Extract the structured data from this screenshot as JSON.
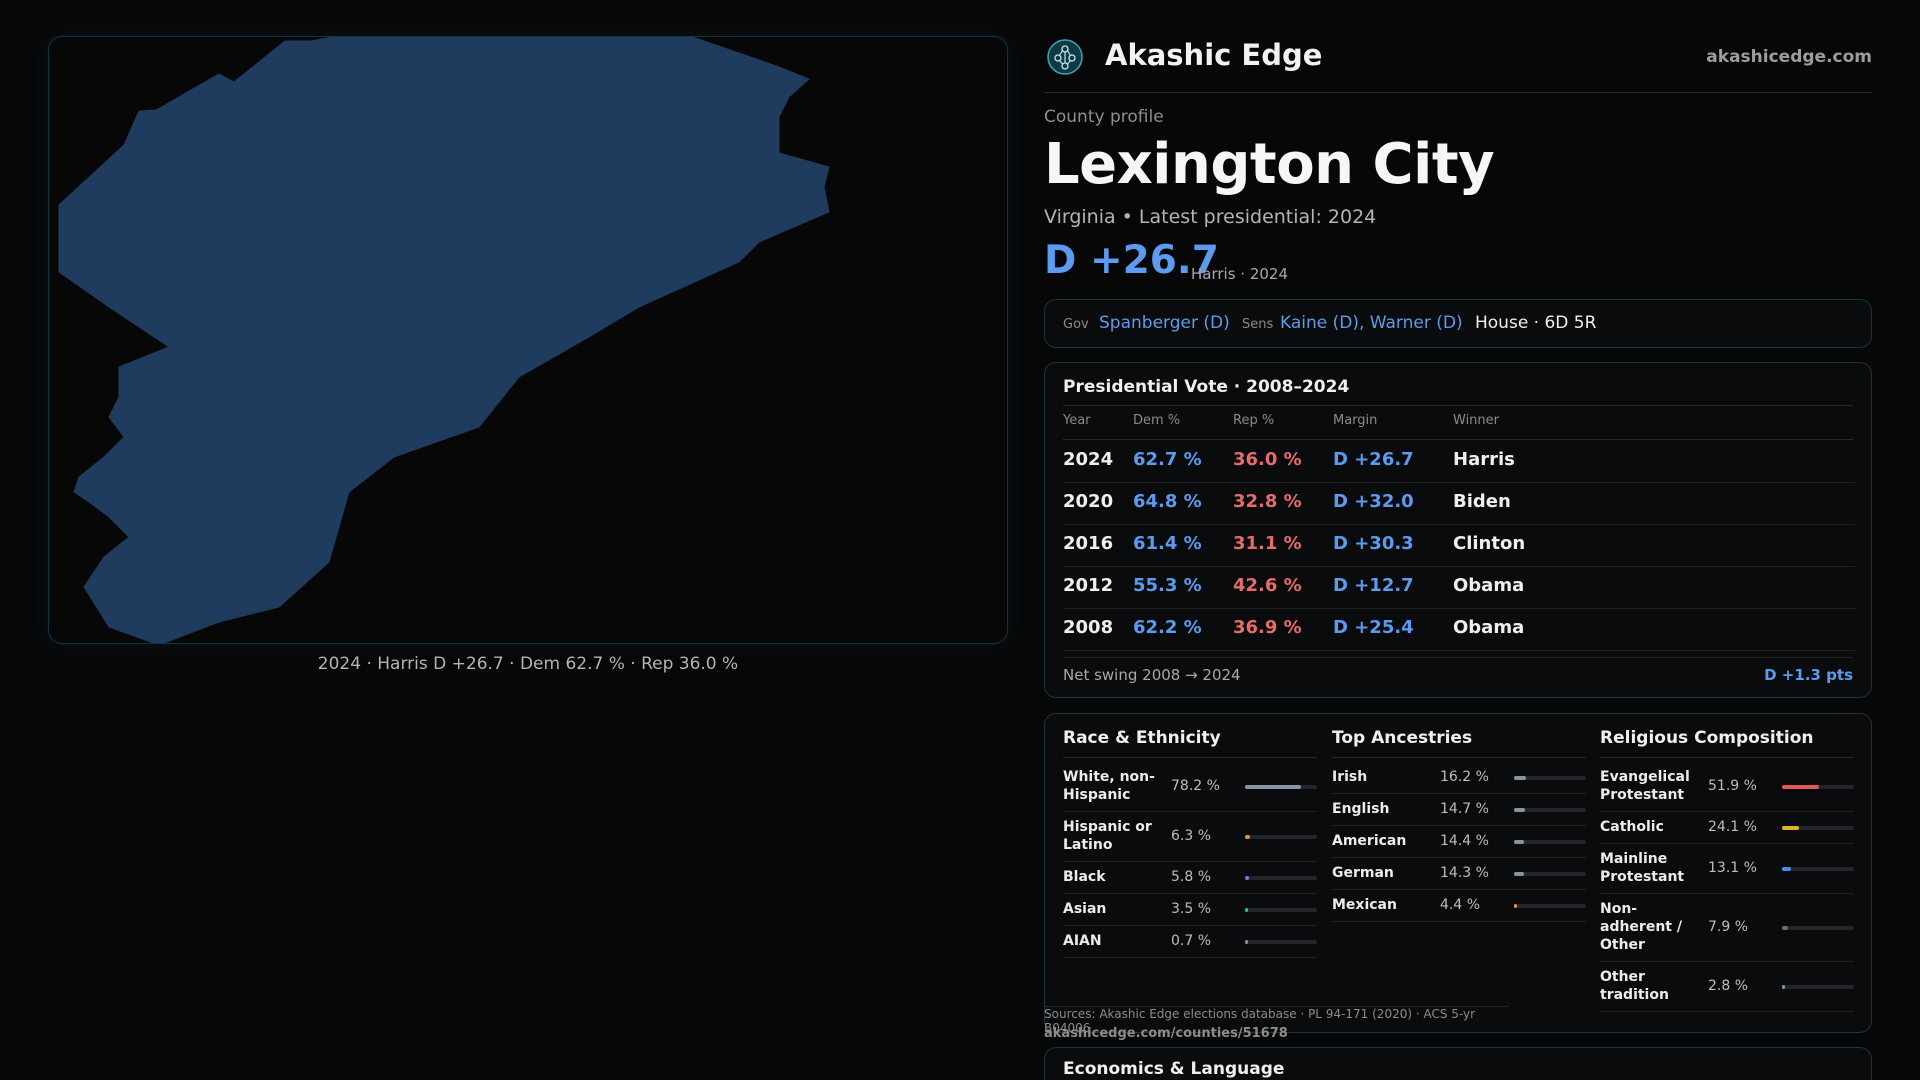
{
  "map": {
    "caption": "2024 · Harris D +26.7 · Dem 62.7 % · Rep 36.0 %",
    "fill_color": "#1f3b5e"
  },
  "header": {
    "brand": "Akashic Edge",
    "site": "akashicedge.com",
    "logo_icon": "tree-of-life-icon"
  },
  "profile": {
    "kicker": "County profile",
    "county": "Lexington City",
    "subline": "Virginia • Latest presidential: 2024",
    "margin": "D +26.7",
    "margin_note": "Harris · 2024"
  },
  "officials": {
    "gov_label": "Gov",
    "gov": "Spanberger (D)",
    "sens_label": "Sens",
    "sens": "Kaine (D), Warner (D)",
    "house": "House · 6D 5R"
  },
  "presidential": {
    "title": "Presidential Vote · 2008–2024",
    "columns": [
      "Year",
      "Dem %",
      "Rep %",
      "Margin",
      "Winner"
    ],
    "rows": [
      {
        "year": "2024",
        "dem": "62.7 %",
        "rep": "36.0 %",
        "margin": "D +26.7",
        "winner": "Harris"
      },
      {
        "year": "2020",
        "dem": "64.8 %",
        "rep": "32.8 %",
        "margin": "D +32.0",
        "winner": "Biden"
      },
      {
        "year": "2016",
        "dem": "61.4 %",
        "rep": "31.1 %",
        "margin": "D +30.3",
        "winner": "Clinton"
      },
      {
        "year": "2012",
        "dem": "55.3 %",
        "rep": "42.6 %",
        "margin": "D +12.7",
        "winner": "Obama"
      },
      {
        "year": "2008",
        "dem": "62.2 %",
        "rep": "36.9 %",
        "margin": "D +25.4",
        "winner": "Obama"
      }
    ],
    "swing_label": "Net swing 2008 → 2024",
    "swing_value": "D +1.3 pts"
  },
  "race": {
    "title": "Race & Ethnicity",
    "rows": [
      {
        "label": "White, non-Hispanic",
        "value": "78.2 %",
        "pct": 78.2,
        "color": "#8a93a6"
      },
      {
        "label": "Hispanic or Latino",
        "value": "6.3 %",
        "pct": 6.3,
        "color": "#e0902f"
      },
      {
        "label": "Black",
        "value": "5.8 %",
        "pct": 5.8,
        "color": "#8b6fe0"
      },
      {
        "label": "Asian",
        "value": "3.5 %",
        "pct": 3.5,
        "color": "#2fbf8a"
      },
      {
        "label": "AIAN",
        "value": "0.7 %",
        "pct": 0.7,
        "color": "#8a93a6"
      }
    ]
  },
  "ancestry": {
    "title": "Top Ancestries",
    "rows": [
      {
        "label": "Irish",
        "value": "16.2 %",
        "pct": 16.2,
        "color": "#8a93a6"
      },
      {
        "label": "English",
        "value": "14.7 %",
        "pct": 14.7,
        "color": "#8a93a6"
      },
      {
        "label": "American",
        "value": "14.4 %",
        "pct": 14.4,
        "color": "#8a93a6"
      },
      {
        "label": "German",
        "value": "14.3 %",
        "pct": 14.3,
        "color": "#8a93a6"
      },
      {
        "label": "Mexican",
        "value": "4.4 %",
        "pct": 4.4,
        "color": "#e0902f"
      }
    ]
  },
  "religion": {
    "title": "Religious Composition",
    "rows": [
      {
        "label": "Evangelical Protestant",
        "value": "51.9 %",
        "pct": 51.9,
        "color": "#e05a5a"
      },
      {
        "label": "Catholic",
        "value": "24.1 %",
        "pct": 24.1,
        "color": "#e0b12f"
      },
      {
        "label": "Mainline Protestant",
        "value": "13.1 %",
        "pct": 13.1,
        "color": "#4a8ff0"
      },
      {
        "label": "Non-adherent / Other",
        "value": "7.9 %",
        "pct": 7.9,
        "color": "#6a6e76"
      },
      {
        "label": "Other tradition",
        "value": "2.8 %",
        "pct": 2.8,
        "color": "#8a93a6"
      }
    ]
  },
  "sources": {
    "text": "Sources: Akashic Edge elections database · PL 94-171 (2020) · ACS 5-yr B04006",
    "url": "akashicedge.com/counties/51678"
  },
  "economics": {
    "title": "Economics & Language"
  }
}
